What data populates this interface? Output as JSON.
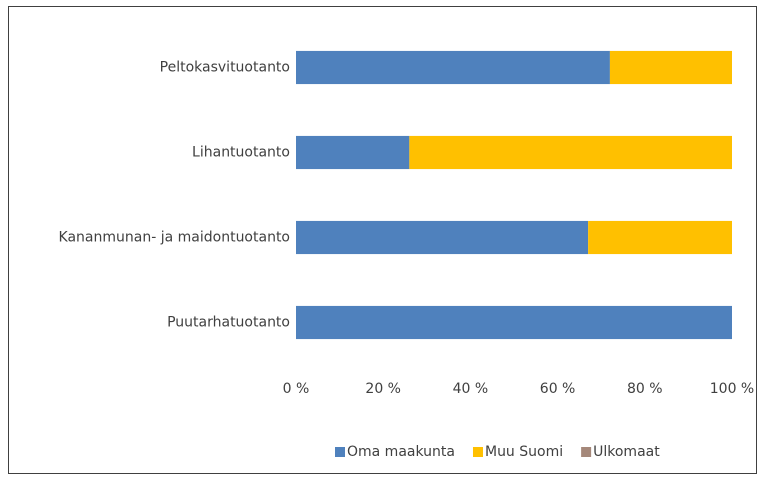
{
  "chart_data": {
    "type": "stacked-barh",
    "categories": [
      "Peltokasvituotanto",
      "Lihantuotanto",
      "Kananmunan- ja maidontuotanto",
      "Puutarhatuotanto"
    ],
    "series": [
      {
        "name": "Oma maakunta",
        "color": "#4f81bd",
        "values": [
          72,
          26,
          67,
          100
        ]
      },
      {
        "name": "Muu Suomi",
        "color": "#ffc000",
        "values": [
          28,
          74,
          33,
          0
        ]
      },
      {
        "name": "Ulkomaat",
        "color": "#a5887a",
        "values": [
          0,
          0,
          0,
          0
        ]
      }
    ],
    "xlim": [
      0,
      100
    ],
    "xticks": [
      {
        "value": 0,
        "label": "0 %"
      },
      {
        "value": 20,
        "label": "20 %"
      },
      {
        "value": 40,
        "label": "40 %"
      },
      {
        "value": 60,
        "label": "60 %"
      },
      {
        "value": 80,
        "label": "80 %"
      },
      {
        "value": 100,
        "label": "100 %"
      }
    ],
    "grid": false,
    "legend": "bottom"
  }
}
